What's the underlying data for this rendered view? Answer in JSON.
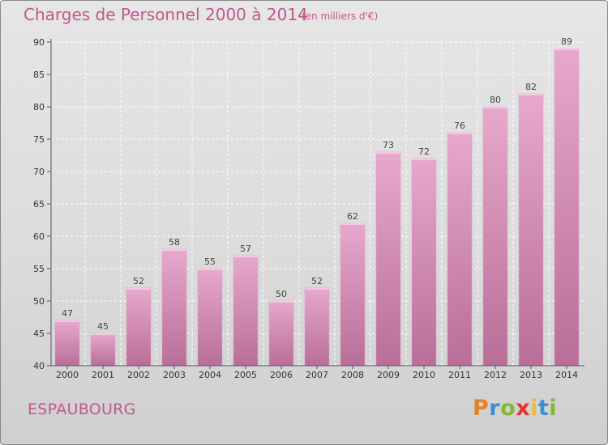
{
  "header": {
    "title": "Charges de Personnel 2000 à 2014",
    "unit": "(en milliers d'€)"
  },
  "footer": {
    "commune": "ESPAUBOURG",
    "logo_letters": [
      "P",
      "r",
      "o",
      "x",
      "i",
      "t",
      "i"
    ],
    "logo_colors": [
      "#e8821f",
      "#3b8fd4",
      "#84b833",
      "#e5342b",
      "#f2b632",
      "#3b8fd4",
      "#84b833"
    ]
  },
  "colors": {
    "accent": "#c2578e",
    "bar_top": "#e8a8cd",
    "bar_bottom": "#b86e98"
  },
  "chart_data": {
    "type": "bar",
    "title": "Charges de Personnel 2000 à 2014",
    "subtitle": "(en milliers d'€)",
    "categories": [
      "2000",
      "2001",
      "2002",
      "2003",
      "2004",
      "2005",
      "2006",
      "2007",
      "2008",
      "2009",
      "2010",
      "2011",
      "2012",
      "2013",
      "2014"
    ],
    "values": [
      47,
      45,
      52,
      58,
      55,
      57,
      50,
      52,
      62,
      73,
      72,
      76,
      80,
      82,
      89
    ],
    "ylim": [
      40,
      90
    ],
    "yticks": [
      40,
      45,
      50,
      55,
      60,
      65,
      70,
      75,
      80,
      85,
      90
    ],
    "grid": true,
    "data_labels": true
  }
}
